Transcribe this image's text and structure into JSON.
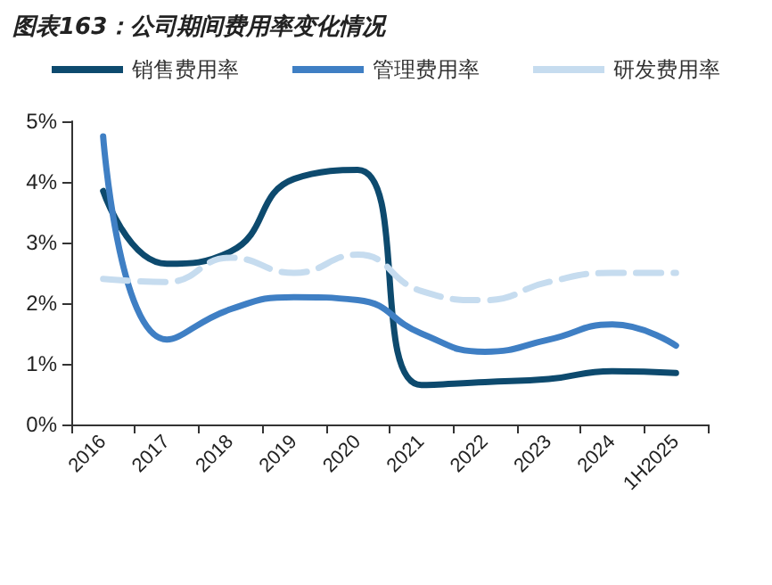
{
  "chart_data": {
    "type": "line",
    "title": "图表163：公司期间费用率变化情况",
    "categories": [
      "2016",
      "2017",
      "2018",
      "2019",
      "2020",
      "2021",
      "2022",
      "2023",
      "2024",
      "1H2025"
    ],
    "series": [
      {
        "name": "销售费用率",
        "color": "#0d4a6e",
        "values": [
          3.85,
          2.65,
          2.85,
          4.05,
          4.2,
          0.65,
          0.7,
          0.75,
          0.88,
          0.85
        ]
      },
      {
        "name": "管理费用率",
        "color": "#3f7fc4",
        "values": [
          4.75,
          1.4,
          1.9,
          2.1,
          2.05,
          1.5,
          1.2,
          1.4,
          1.65,
          1.3
        ]
      },
      {
        "name": "研发费用率",
        "color": "#c6dcef",
        "line_style": "dashed",
        "values": [
          2.4,
          2.35,
          2.75,
          2.5,
          2.8,
          2.2,
          2.05,
          2.35,
          2.5,
          2.5
        ]
      }
    ],
    "ylim": [
      0,
      5
    ],
    "yticks": [
      {
        "value": 0,
        "label": "0%"
      },
      {
        "value": 1,
        "label": "1%"
      },
      {
        "value": 2,
        "label": "2%"
      },
      {
        "value": 3,
        "label": "3%"
      },
      {
        "value": 4,
        "label": "4%"
      },
      {
        "value": 5,
        "label": "5%"
      }
    ],
    "grid": false,
    "legend": "top",
    "marker": "none"
  }
}
